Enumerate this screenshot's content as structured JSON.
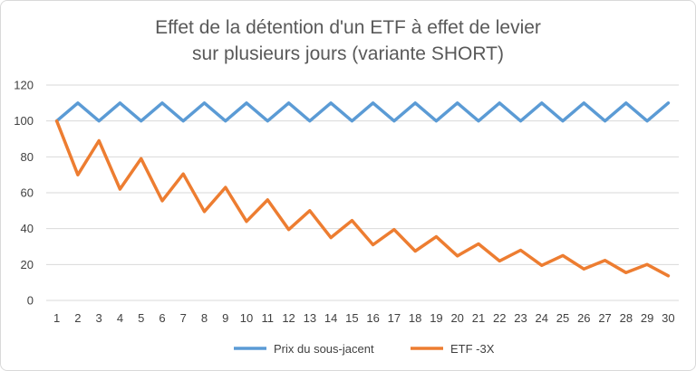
{
  "chart_data": {
    "type": "line",
    "title_lines": [
      "Effet de la détention d'un ETF à effet de levier",
      "sur plusieurs jours (variante SHORT)"
    ],
    "xlabel": "",
    "ylabel": "",
    "x": [
      1,
      2,
      3,
      4,
      5,
      6,
      7,
      8,
      9,
      10,
      11,
      12,
      13,
      14,
      15,
      16,
      17,
      18,
      19,
      20,
      21,
      22,
      23,
      24,
      25,
      26,
      27,
      28,
      29,
      30
    ],
    "ylim": [
      0,
      120
    ],
    "yticks": [
      0,
      20,
      40,
      60,
      80,
      100,
      120
    ],
    "grid": true,
    "legend_position": "bottom",
    "series": [
      {
        "name": "Prix du sous-jacent",
        "color": "#5b9bd5",
        "values": [
          100,
          110,
          100,
          110,
          100,
          110,
          100,
          110,
          100,
          110,
          100,
          110,
          100,
          110,
          100,
          110,
          100,
          110,
          100,
          110,
          100,
          110,
          100,
          110,
          100,
          110,
          100,
          110,
          100,
          110
        ]
      },
      {
        "name": "ETF -3X",
        "color": "#ed7d31",
        "values": [
          100,
          70,
          89,
          62,
          79,
          55.5,
          70.5,
          49.5,
          63,
          44,
          56,
          39.5,
          50,
          35,
          44.5,
          31,
          39.5,
          27.5,
          35.5,
          24.8,
          31.5,
          22,
          28,
          19.5,
          25,
          17.5,
          22.3,
          15.5,
          20,
          13.7
        ]
      }
    ]
  }
}
